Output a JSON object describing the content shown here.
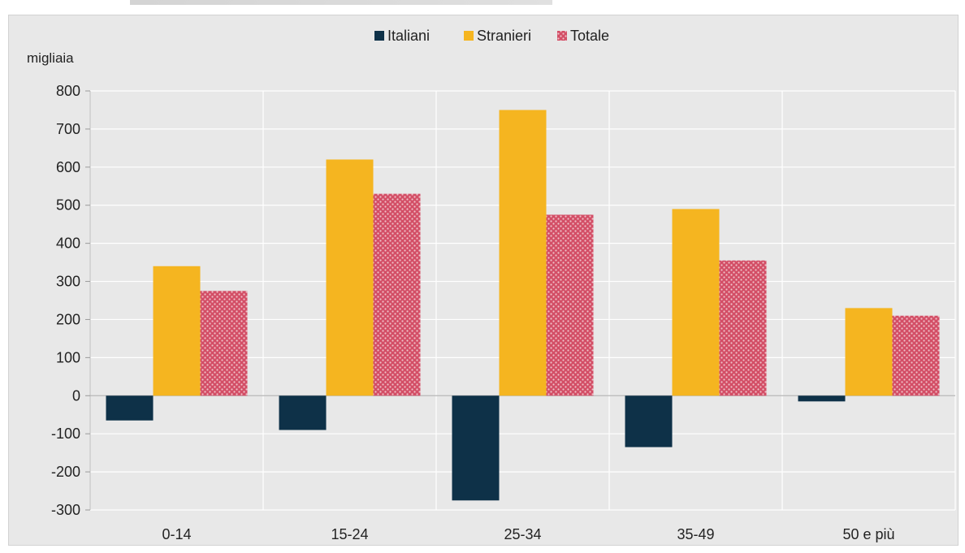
{
  "chart_data": {
    "type": "bar",
    "ylabel": "migliaia",
    "categories": [
      "0-14",
      "15-24",
      "25-34",
      "35-49",
      "50 e più"
    ],
    "ylim": [
      -300,
      800
    ],
    "yticks": [
      800,
      700,
      600,
      500,
      400,
      300,
      200,
      100,
      0,
      -100,
      -200,
      -300
    ],
    "grid": true,
    "legend_position": "top-center",
    "series": [
      {
        "name": "Italiani",
        "values": [
          -65,
          -90,
          -275,
          -135,
          -15
        ],
        "color": "#0e3148"
      },
      {
        "name": "Stranieri",
        "values": [
          340,
          620,
          750,
          490,
          230
        ],
        "color": "#f5b520"
      },
      {
        "name": "Totale",
        "values": [
          275,
          530,
          475,
          355,
          210
        ],
        "color": "#c43a55"
      }
    ]
  }
}
